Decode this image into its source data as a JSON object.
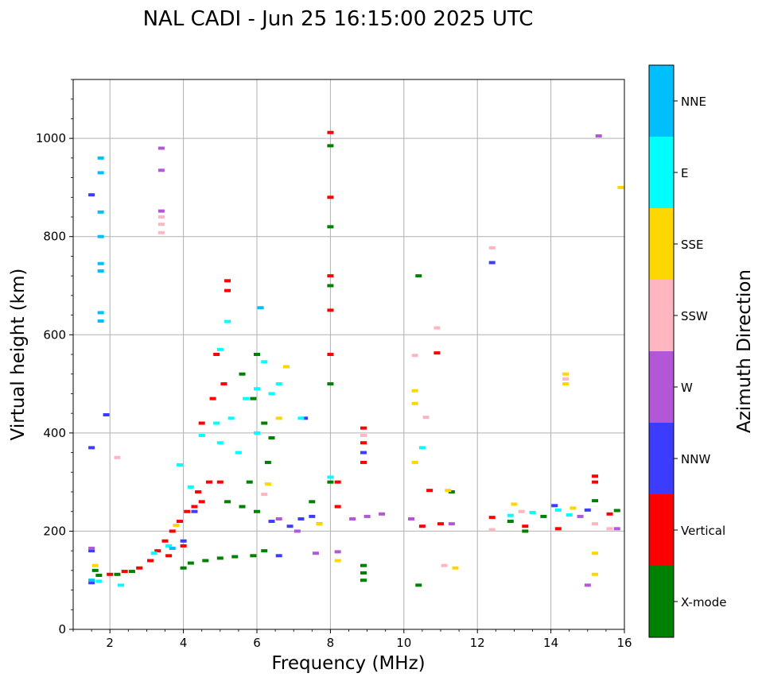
{
  "chart_data": {
    "type": "scatter",
    "title": "NAL CADI - Jun 25 16:15:00 2025 UTC",
    "xlabel": "Frequency (MHz)",
    "ylabel": "Virtual height (km)",
    "xlim": [
      1,
      16
    ],
    "ylim": [
      0,
      1120
    ],
    "xticks": [
      2,
      4,
      6,
      8,
      10,
      12,
      14,
      16
    ],
    "yticks": [
      0,
      200,
      400,
      600,
      800,
      1000
    ],
    "grid": true,
    "colorbar": {
      "label": "Azimuth Direction",
      "categories": [
        {
          "name": "X-mode",
          "color": "#008000"
        },
        {
          "name": "Vertical",
          "color": "#ff0000"
        },
        {
          "name": "NNW",
          "color": "#3c3cff"
        },
        {
          "name": "W",
          "color": "#b257d6"
        },
        {
          "name": "SSW",
          "color": "#ffb6c1"
        },
        {
          "name": "SSE",
          "color": "#ffd700"
        },
        {
          "name": "E",
          "color": "#00ffff"
        },
        {
          "name": "NNE",
          "color": "#00bfff"
        }
      ]
    },
    "series": [
      {
        "name": "X-mode",
        "points": [
          [
            1.6,
            120
          ],
          [
            1.7,
            110
          ],
          [
            2.2,
            112
          ],
          [
            2.6,
            118
          ],
          [
            4.0,
            125
          ],
          [
            4.2,
            135
          ],
          [
            4.6,
            140
          ],
          [
            5.0,
            145
          ],
          [
            5.4,
            148
          ],
          [
            5.9,
            150
          ],
          [
            6.2,
            160
          ],
          [
            6.0,
            240
          ],
          [
            5.6,
            250
          ],
          [
            5.2,
            260
          ],
          [
            5.8,
            300
          ],
          [
            6.3,
            340
          ],
          [
            6.4,
            390
          ],
          [
            6.2,
            420
          ],
          [
            5.9,
            470
          ],
          [
            5.6,
            520
          ],
          [
            6.0,
            560
          ],
          [
            7.5,
            260
          ],
          [
            8.0,
            300
          ],
          [
            8.0,
            500
          ],
          [
            8.0,
            700
          ],
          [
            8.0,
            820
          ],
          [
            8.0,
            985
          ],
          [
            8.9,
            100
          ],
          [
            8.9,
            115
          ],
          [
            8.9,
            130
          ],
          [
            10.4,
            90
          ],
          [
            10.4,
            720
          ],
          [
            11.3,
            280
          ],
          [
            12.9,
            220
          ],
          [
            13.3,
            200
          ],
          [
            13.8,
            230
          ],
          [
            15.2,
            262
          ],
          [
            15.8,
            242
          ]
        ]
      },
      {
        "name": "Vertical",
        "points": [
          [
            2.0,
            112
          ],
          [
            2.4,
            118
          ],
          [
            2.8,
            125
          ],
          [
            3.1,
            140
          ],
          [
            3.3,
            160
          ],
          [
            3.5,
            180
          ],
          [
            3.7,
            200
          ],
          [
            3.9,
            220
          ],
          [
            4.1,
            240
          ],
          [
            4.3,
            250
          ],
          [
            4.5,
            260
          ],
          [
            3.6,
            150
          ],
          [
            4.0,
            170
          ],
          [
            4.4,
            280
          ],
          [
            4.7,
            300
          ],
          [
            5.0,
            300
          ],
          [
            4.5,
            420
          ],
          [
            4.8,
            470
          ],
          [
            5.1,
            500
          ],
          [
            4.9,
            560
          ],
          [
            5.2,
            690
          ],
          [
            5.2,
            710
          ],
          [
            8.0,
            1012
          ],
          [
            8.0,
            880
          ],
          [
            8.0,
            720
          ],
          [
            8.0,
            650
          ],
          [
            8.0,
            560
          ],
          [
            8.2,
            300
          ],
          [
            8.2,
            250
          ],
          [
            8.9,
            340
          ],
          [
            8.9,
            380
          ],
          [
            8.9,
            410
          ],
          [
            10.5,
            210
          ],
          [
            10.7,
            283
          ],
          [
            10.9,
            563
          ],
          [
            11.0,
            215
          ],
          [
            12.4,
            228
          ],
          [
            13.3,
            210
          ],
          [
            14.2,
            205
          ],
          [
            15.2,
            300
          ],
          [
            15.2,
            312
          ],
          [
            15.6,
            235
          ]
        ]
      },
      {
        "name": "NNW",
        "points": [
          [
            1.5,
            95
          ],
          [
            1.5,
            160
          ],
          [
            1.5,
            370
          ],
          [
            1.5,
            885
          ],
          [
            1.9,
            437
          ],
          [
            4.0,
            180
          ],
          [
            4.3,
            240
          ],
          [
            6.4,
            220
          ],
          [
            6.6,
            150
          ],
          [
            6.9,
            210
          ],
          [
            7.2,
            225
          ],
          [
            7.5,
            230
          ],
          [
            7.7,
            215
          ],
          [
            7.3,
            430
          ],
          [
            8.9,
            360
          ],
          [
            12.4,
            747
          ],
          [
            14.1,
            252
          ],
          [
            15.0,
            243
          ]
        ]
      },
      {
        "name": "W",
        "points": [
          [
            1.5,
            165
          ],
          [
            3.4,
            980
          ],
          [
            3.4,
            935
          ],
          [
            3.4,
            852
          ],
          [
            6.6,
            225
          ],
          [
            7.1,
            200
          ],
          [
            7.6,
            155
          ],
          [
            8.2,
            158
          ],
          [
            8.6,
            225
          ],
          [
            9.0,
            230
          ],
          [
            9.4,
            235
          ],
          [
            10.2,
            225
          ],
          [
            11.3,
            215
          ],
          [
            14.8,
            230
          ],
          [
            15.0,
            90
          ],
          [
            15.3,
            1005
          ],
          [
            15.8,
            205
          ]
        ]
      },
      {
        "name": "SSW",
        "points": [
          [
            2.2,
            350
          ],
          [
            3.4,
            840
          ],
          [
            3.4,
            825
          ],
          [
            3.4,
            808
          ],
          [
            6.2,
            275
          ],
          [
            8.9,
            395
          ],
          [
            10.3,
            558
          ],
          [
            10.6,
            432
          ],
          [
            10.9,
            614
          ],
          [
            11.1,
            130
          ],
          [
            12.4,
            777
          ],
          [
            12.4,
            203
          ],
          [
            13.2,
            240
          ],
          [
            14.4,
            510
          ],
          [
            15.2,
            215
          ],
          [
            15.6,
            205
          ]
        ]
      },
      {
        "name": "SSE",
        "points": [
          [
            1.6,
            130
          ],
          [
            3.8,
            212
          ],
          [
            6.3,
            296
          ],
          [
            6.6,
            430
          ],
          [
            6.8,
            535
          ],
          [
            7.7,
            215
          ],
          [
            8.2,
            140
          ],
          [
            10.3,
            340
          ],
          [
            10.3,
            460
          ],
          [
            10.3,
            486
          ],
          [
            11.2,
            283
          ],
          [
            11.4,
            125
          ],
          [
            13.0,
            255
          ],
          [
            14.4,
            500
          ],
          [
            14.4,
            520
          ],
          [
            14.6,
            247
          ],
          [
            15.2,
            155
          ],
          [
            15.2,
            112
          ],
          [
            15.9,
            900
          ]
        ]
      },
      {
        "name": "E",
        "points": [
          [
            1.7,
            98
          ],
          [
            2.3,
            90
          ],
          [
            3.2,
            155
          ],
          [
            3.6,
            170
          ],
          [
            3.9,
            335
          ],
          [
            4.2,
            290
          ],
          [
            4.5,
            395
          ],
          [
            4.9,
            420
          ],
          [
            5.0,
            380
          ],
          [
            5.3,
            430
          ],
          [
            5.5,
            360
          ],
          [
            5.2,
            627
          ],
          [
            5.0,
            570
          ],
          [
            5.7,
            470
          ],
          [
            6.0,
            490
          ],
          [
            6.4,
            480
          ],
          [
            6.6,
            500
          ],
          [
            6.2,
            545
          ],
          [
            6.0,
            400
          ],
          [
            7.2,
            430
          ],
          [
            8.0,
            310
          ],
          [
            10.5,
            370
          ],
          [
            12.9,
            232
          ],
          [
            13.5,
            238
          ],
          [
            14.2,
            243
          ],
          [
            14.5,
            233
          ]
        ]
      },
      {
        "name": "NNE",
        "points": [
          [
            1.5,
            100
          ],
          [
            1.75,
            628
          ],
          [
            1.75,
            645
          ],
          [
            1.75,
            730
          ],
          [
            1.75,
            745
          ],
          [
            1.75,
            800
          ],
          [
            1.75,
            850
          ],
          [
            1.75,
            930
          ],
          [
            1.75,
            960
          ],
          [
            3.7,
            165
          ],
          [
            6.1,
            655
          ]
        ]
      }
    ]
  }
}
